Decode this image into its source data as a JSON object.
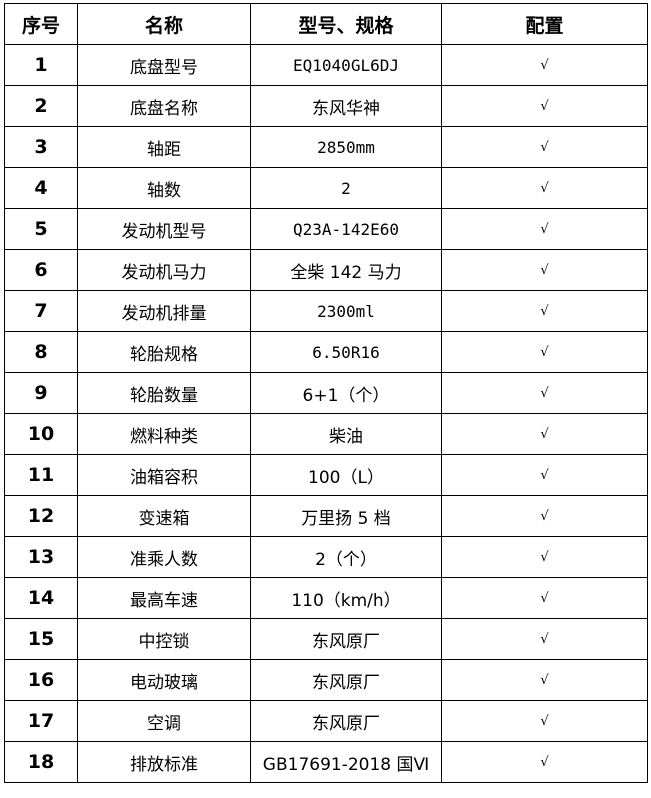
{
  "table": {
    "headers": [
      "序号",
      "名称",
      "型号、规格",
      "配置"
    ],
    "rows": [
      {
        "no": "1",
        "name": "底盘型号",
        "spec": "EQ1040GL6DJ",
        "config": "√"
      },
      {
        "no": "2",
        "name": "底盘名称",
        "spec": "东风华神",
        "config": "√"
      },
      {
        "no": "3",
        "name": "轴距",
        "spec": "2850mm",
        "config": "√"
      },
      {
        "no": "4",
        "name": "轴数",
        "spec": "2",
        "config": "√"
      },
      {
        "no": "5",
        "name": "发动机型号",
        "spec": "Q23A-142E60",
        "config": "√"
      },
      {
        "no": "6",
        "name": "发动机马力",
        "spec": "全柴 142 马力",
        "config": "√"
      },
      {
        "no": "7",
        "name": "发动机排量",
        "spec": "2300ml",
        "config": "√"
      },
      {
        "no": "8",
        "name": "轮胎规格",
        "spec": "6.50R16",
        "config": "√"
      },
      {
        "no": "9",
        "name": "轮胎数量",
        "spec": "6+1（个）",
        "config": "√"
      },
      {
        "no": "10",
        "name": "燃料种类",
        "spec": "柴油",
        "config": "√"
      },
      {
        "no": "11",
        "name": "油箱容积",
        "spec": "100（L）",
        "config": "√"
      },
      {
        "no": "12",
        "name": "变速箱",
        "spec": "万里扬 5 档",
        "config": "√"
      },
      {
        "no": "13",
        "name": "准乘人数",
        "spec": "2（个）",
        "config": "√"
      },
      {
        "no": "14",
        "name": "最高车速",
        "spec": "110（km/h）",
        "config": "√"
      },
      {
        "no": "15",
        "name": "中控锁",
        "spec": "东风原厂",
        "config": "√"
      },
      {
        "no": "16",
        "name": "电动玻璃",
        "spec": "东风原厂",
        "config": "√"
      },
      {
        "no": "17",
        "name": "空调",
        "spec": "东风原厂",
        "config": "√"
      },
      {
        "no": "18",
        "name": "排放标准",
        "spec": "GB17691-2018 国Ⅵ",
        "config": "√"
      }
    ]
  }
}
